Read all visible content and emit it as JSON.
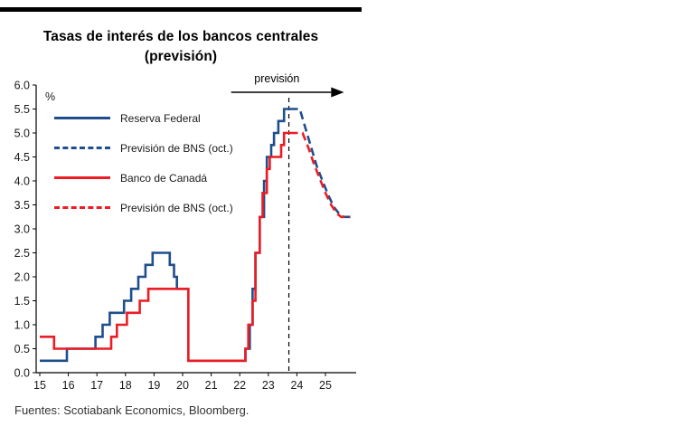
{
  "page": {
    "title_line1": "Tasas de interés de los bancos centrales",
    "title_line2": "(previsión)",
    "source": "Fuentes: Scotiabank Economics, Bloomberg."
  },
  "chart_data": {
    "type": "line",
    "title": "Tasas de interés de los bancos centrales (previsión)",
    "xlabel": "",
    "ylabel": "%",
    "ylim": [
      0,
      6
    ],
    "x_range": [
      15,
      26
    ],
    "grid": false,
    "legend_position": "top-left inside",
    "forecast_label": "previsión",
    "forecast_divider_x": 23.72,
    "yticks": [
      "0.0",
      "0.5",
      "1.0",
      "1.5",
      "2.0",
      "2.5",
      "3.0",
      "3.5",
      "4.0",
      "4.5",
      "5.0",
      "5.5",
      "6.0"
    ],
    "xticks": [
      "15",
      "16",
      "17",
      "18",
      "19",
      "20",
      "21",
      "22",
      "23",
      "24",
      "25"
    ],
    "series": [
      {
        "name": "Reserva Federal",
        "color": "#1f4e8c",
        "dash": "solid",
        "points": [
          [
            15.0,
            0.25
          ],
          [
            15.95,
            0.25
          ],
          [
            15.95,
            0.5
          ],
          [
            16.95,
            0.5
          ],
          [
            16.95,
            0.75
          ],
          [
            17.2,
            0.75
          ],
          [
            17.2,
            1.0
          ],
          [
            17.45,
            1.0
          ],
          [
            17.45,
            1.25
          ],
          [
            17.95,
            1.25
          ],
          [
            17.95,
            1.5
          ],
          [
            18.2,
            1.5
          ],
          [
            18.2,
            1.75
          ],
          [
            18.45,
            1.75
          ],
          [
            18.45,
            2.0
          ],
          [
            18.7,
            2.0
          ],
          [
            18.7,
            2.25
          ],
          [
            18.95,
            2.25
          ],
          [
            18.95,
            2.5
          ],
          [
            19.55,
            2.5
          ],
          [
            19.55,
            2.25
          ],
          [
            19.7,
            2.25
          ],
          [
            19.7,
            2.0
          ],
          [
            19.8,
            2.0
          ],
          [
            19.8,
            1.75
          ],
          [
            20.2,
            1.75
          ],
          [
            20.2,
            0.25
          ],
          [
            22.2,
            0.25
          ],
          [
            22.2,
            0.5
          ],
          [
            22.35,
            0.5
          ],
          [
            22.35,
            1.0
          ],
          [
            22.45,
            1.0
          ],
          [
            22.45,
            1.75
          ],
          [
            22.55,
            1.75
          ],
          [
            22.55,
            2.5
          ],
          [
            22.7,
            2.5
          ],
          [
            22.7,
            3.25
          ],
          [
            22.85,
            3.25
          ],
          [
            22.85,
            4.0
          ],
          [
            22.95,
            4.0
          ],
          [
            22.95,
            4.5
          ],
          [
            23.1,
            4.5
          ],
          [
            23.1,
            4.75
          ],
          [
            23.2,
            4.75
          ],
          [
            23.2,
            5.0
          ],
          [
            23.35,
            5.0
          ],
          [
            23.35,
            5.25
          ],
          [
            23.55,
            5.25
          ],
          [
            23.55,
            5.5
          ],
          [
            23.75,
            5.5
          ]
        ]
      },
      {
        "name": "Previsión de BNS (oct.)",
        "color": "#1f4e8c",
        "dash": "dashed",
        "points": [
          [
            23.75,
            5.5
          ],
          [
            24.1,
            5.5
          ],
          [
            24.3,
            5.1
          ],
          [
            24.5,
            4.7
          ],
          [
            24.7,
            4.3
          ],
          [
            24.9,
            4.0
          ],
          [
            25.1,
            3.7
          ],
          [
            25.3,
            3.45
          ],
          [
            25.5,
            3.3
          ],
          [
            25.65,
            3.25
          ],
          [
            25.95,
            3.25
          ]
        ]
      },
      {
        "name": "Banco de Canadá",
        "color": "#ec1c24",
        "dash": "solid",
        "points": [
          [
            15.0,
            0.75
          ],
          [
            15.5,
            0.75
          ],
          [
            15.5,
            0.5
          ],
          [
            17.5,
            0.5
          ],
          [
            17.5,
            0.75
          ],
          [
            17.7,
            0.75
          ],
          [
            17.7,
            1.0
          ],
          [
            18.05,
            1.0
          ],
          [
            18.05,
            1.25
          ],
          [
            18.5,
            1.25
          ],
          [
            18.5,
            1.5
          ],
          [
            18.8,
            1.5
          ],
          [
            18.8,
            1.75
          ],
          [
            20.2,
            1.75
          ],
          [
            20.2,
            0.25
          ],
          [
            22.2,
            0.25
          ],
          [
            22.2,
            0.5
          ],
          [
            22.3,
            0.5
          ],
          [
            22.3,
            1.0
          ],
          [
            22.45,
            1.0
          ],
          [
            22.45,
            1.5
          ],
          [
            22.55,
            1.5
          ],
          [
            22.55,
            2.5
          ],
          [
            22.7,
            2.5
          ],
          [
            22.7,
            3.25
          ],
          [
            22.8,
            3.25
          ],
          [
            22.8,
            3.75
          ],
          [
            22.95,
            3.75
          ],
          [
            22.95,
            4.25
          ],
          [
            23.05,
            4.25
          ],
          [
            23.05,
            4.5
          ],
          [
            23.45,
            4.5
          ],
          [
            23.45,
            4.75
          ],
          [
            23.55,
            4.75
          ],
          [
            23.55,
            5.0
          ],
          [
            23.75,
            5.0
          ]
        ]
      },
      {
        "name": "Previsión de BNS (oct.)",
        "color": "#ec1c24",
        "dash": "dashed",
        "points": [
          [
            23.75,
            5.0
          ],
          [
            24.2,
            5.0
          ],
          [
            24.4,
            4.7
          ],
          [
            24.6,
            4.35
          ],
          [
            24.8,
            4.05
          ],
          [
            25.0,
            3.75
          ],
          [
            25.2,
            3.5
          ],
          [
            25.4,
            3.32
          ],
          [
            25.55,
            3.25
          ],
          [
            25.85,
            3.25
          ]
        ]
      }
    ]
  }
}
